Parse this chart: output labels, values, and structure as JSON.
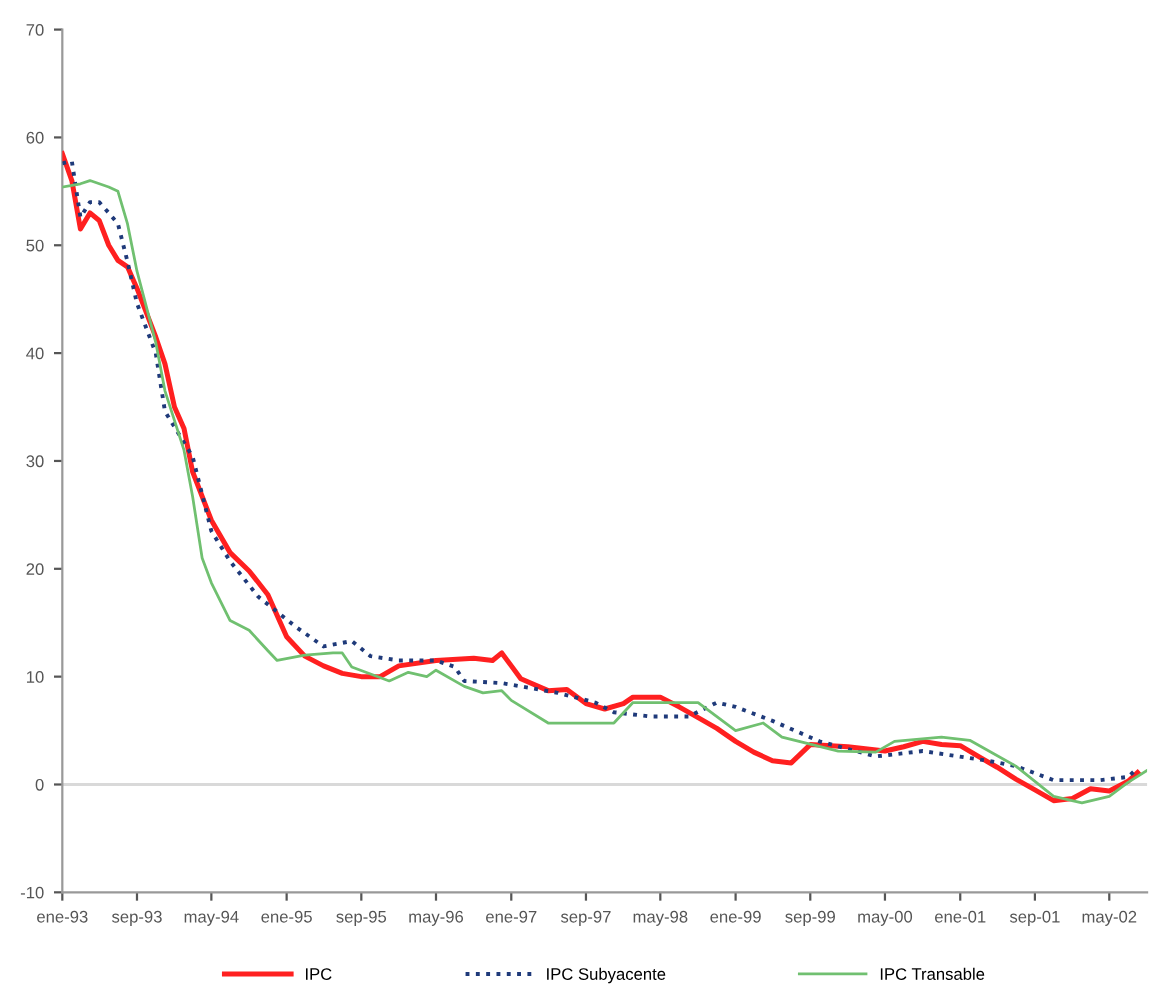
{
  "chart_data": {
    "type": "line",
    "xlim": [
      "1993-01",
      "2002-09"
    ],
    "ylim": [
      -10,
      70
    ],
    "yticks": [
      -10,
      0,
      10,
      20,
      30,
      40,
      50,
      60,
      70
    ],
    "xticks": [
      {
        "value": "1993-01",
        "label": "ene-93"
      },
      {
        "value": "1993-09",
        "label": "sep-93"
      },
      {
        "value": "1994-05",
        "label": "may-94"
      },
      {
        "value": "1995-01",
        "label": "ene-95"
      },
      {
        "value": "1995-09",
        "label": "sep-95"
      },
      {
        "value": "1996-05",
        "label": "may-96"
      },
      {
        "value": "1997-01",
        "label": "ene-97"
      },
      {
        "value": "1997-09",
        "label": "sep-97"
      },
      {
        "value": "1998-05",
        "label": "may-98"
      },
      {
        "value": "1999-01",
        "label": "ene-99"
      },
      {
        "value": "1999-09",
        "label": "sep-99"
      },
      {
        "value": "2000-05",
        "label": "may-00"
      },
      {
        "value": "2001-01",
        "label": "ene-01"
      },
      {
        "value": "2001-09",
        "label": "sep-01"
      },
      {
        "value": "2002-05",
        "label": "may-02"
      }
    ],
    "grid": false,
    "legend": "bottom",
    "marker": "none",
    "ref_lines": [
      {
        "axis": "y",
        "value": 0,
        "color": "#d9d9d9"
      }
    ],
    "series": [
      {
        "name": "IPC",
        "color": "#ff2020",
        "line_style": "solid",
        "x": [
          "1993-01",
          "1993-02",
          "1993-03",
          "1993-04",
          "1993-05",
          "1993-06",
          "1993-07",
          "1993-08",
          "1993-09",
          "1993-11",
          "1993-12",
          "1994-01",
          "1994-02",
          "1994-03",
          "1994-05",
          "1994-07",
          "1994-09",
          "1994-11",
          "1995-01",
          "1995-03",
          "1995-05",
          "1995-07",
          "1995-09",
          "1995-11",
          "1996-01",
          "1996-05",
          "1996-09",
          "1996-11",
          "1996-12",
          "1997-02",
          "1997-05",
          "1997-07",
          "1997-09",
          "1997-11",
          "1998-01",
          "1998-02",
          "1998-05",
          "1998-07",
          "1998-09",
          "1998-11",
          "1999-01",
          "1999-03",
          "1999-05",
          "1999-07",
          "1999-09",
          "2000-01",
          "2000-05",
          "2000-07",
          "2000-09",
          "2000-11",
          "2001-01",
          "2001-03",
          "2001-05",
          "2001-07",
          "2001-09",
          "2001-11",
          "2002-01",
          "2002-03",
          "2002-05",
          "2002-07",
          "2002-08"
        ],
        "values": [
          58.5,
          56,
          51.5,
          53,
          52.3,
          50,
          48.6,
          48,
          46,
          41.5,
          39,
          35,
          33,
          29,
          24.5,
          21.5,
          19.8,
          17.6,
          13.7,
          11.9,
          11,
          10.3,
          10,
          10,
          11,
          11.5,
          11.7,
          11.5,
          12.2,
          9.8,
          8.7,
          8.8,
          7.5,
          7,
          7.5,
          8.1,
          8.1,
          7.2,
          6.2,
          5.2,
          4,
          3,
          2.2,
          2,
          3.7,
          3.5,
          3.1,
          3.5,
          4,
          3.7,
          3.6,
          2.6,
          1.6,
          0.5,
          -0.5,
          -1.5,
          -1.3,
          -0.4,
          -0.6,
          0.3,
          1.1
        ]
      },
      {
        "name": "IPC Subyacente",
        "color": "#1f3a7a",
        "line_style": "dotted",
        "x": [
          "1993-01",
          "1993-02",
          "1993-03",
          "1993-04",
          "1993-05",
          "1993-06",
          "1993-07",
          "1993-08",
          "1993-09",
          "1993-11",
          "1993-12",
          "1994-03",
          "1994-05",
          "1994-07",
          "1994-10",
          "1995-02",
          "1995-05",
          "1995-08",
          "1995-10",
          "1996-01",
          "1996-05",
          "1996-07",
          "1996-08",
          "1996-12",
          "1997-02",
          "1997-06",
          "1997-10",
          "1997-12",
          "1998-04",
          "1998-08",
          "1998-11",
          "1999-01",
          "1999-05",
          "1999-10",
          "2000-04",
          "2000-09",
          "2001-04",
          "2001-07",
          "2001-11",
          "2002-04",
          "2002-07",
          "2002-08"
        ],
        "values": [
          57.6,
          57.8,
          52.6,
          54,
          54,
          53,
          52,
          48.5,
          44.6,
          40,
          34.6,
          30.4,
          23.5,
          20.7,
          17.4,
          14.6,
          12.8,
          13.3,
          11.9,
          11.5,
          11.5,
          10.9,
          9.6,
          9.4,
          9.1,
          8.5,
          7.6,
          6.7,
          6.3,
          6.3,
          7.6,
          7.2,
          5.9,
          4,
          2.6,
          3.1,
          2.2,
          1.7,
          0.4,
          0.4,
          0.7,
          1.5
        ]
      },
      {
        "name": "IPC Transable",
        "color": "#70c070",
        "line_style": "solid",
        "x": [
          "1993-01",
          "1993-03",
          "1993-04",
          "1993-06",
          "1993-07",
          "1993-08",
          "1993-09",
          "1993-11",
          "1993-12",
          "1994-02",
          "1994-03",
          "1994-04",
          "1994-05",
          "1994-07",
          "1994-09",
          "1994-11",
          "1994-12",
          "1995-03",
          "1995-06",
          "1995-07",
          "1995-08",
          "1995-12",
          "1996-02",
          "1996-04",
          "1996-05",
          "1996-08",
          "1996-10",
          "1996-12",
          "1997-01",
          "1997-05",
          "1997-10",
          "1997-12",
          "1998-02",
          "1998-05",
          "1998-09",
          "1999-01",
          "1999-04",
          "1999-06",
          "1999-12",
          "2000-04",
          "2000-06",
          "2000-11",
          "2001-02",
          "2001-07",
          "2001-11",
          "2002-02",
          "2002-05",
          "2002-07",
          "2002-09"
        ],
        "values": [
          55.4,
          55.7,
          56,
          55.4,
          55,
          52,
          47.6,
          41,
          36.5,
          31,
          26.7,
          21,
          18.7,
          15.2,
          14.3,
          12.4,
          11.5,
          12,
          12.2,
          12.2,
          10.9,
          9.6,
          10.4,
          10,
          10.6,
          9.1,
          8.5,
          8.7,
          7.8,
          5.7,
          5.7,
          5.7,
          7.6,
          7.6,
          7.6,
          5,
          5.7,
          4.4,
          3.1,
          3,
          4,
          4.4,
          4.1,
          1.7,
          -1.1,
          -1.7,
          -1.1,
          0.2,
          1.3
        ]
      }
    ]
  }
}
